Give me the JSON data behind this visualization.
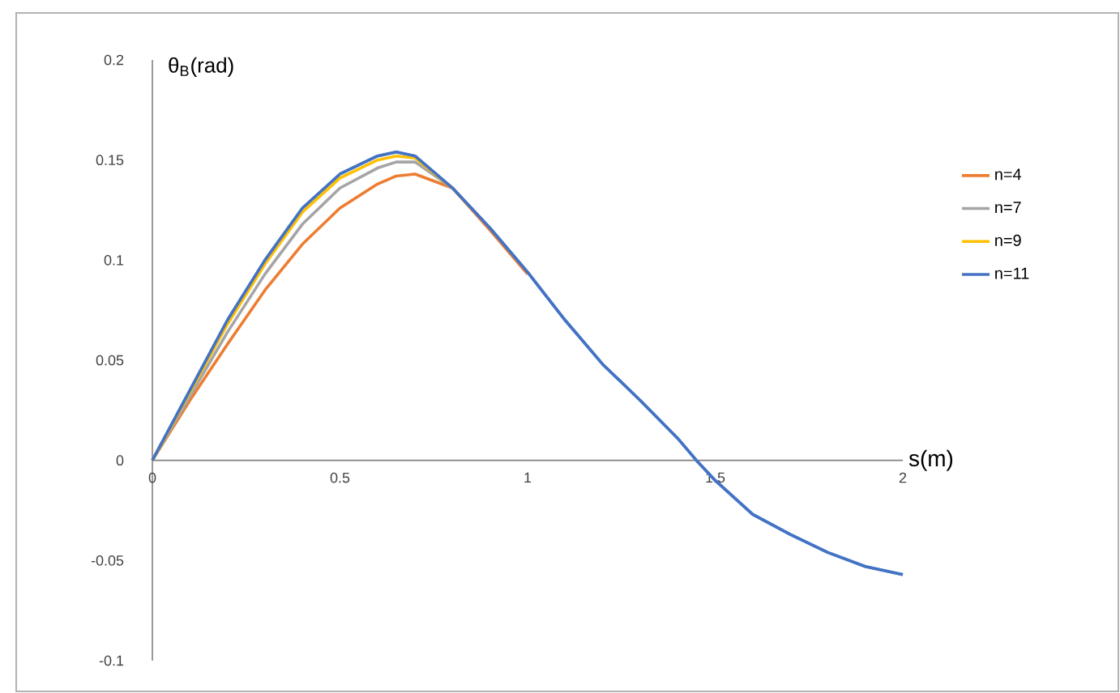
{
  "chart_data": {
    "type": "line",
    "xlabel": "s(m)",
    "ylabel": "θ$_{B}$(rad)",
    "x": [
      0,
      0.1,
      0.2,
      0.3,
      0.4,
      0.5,
      0.6,
      0.65,
      0.7,
      0.8,
      0.9,
      1.0,
      1.1,
      1.2,
      1.3,
      1.4,
      1.45,
      1.5,
      1.6,
      1.7,
      1.8,
      1.9,
      2.0
    ],
    "series": [
      {
        "color": "#5b9bd5",
        "values": [
          0,
          0.035,
          0.07,
          0.1,
          0.126,
          0.143,
          0.152,
          0.154,
          0.152,
          0.136,
          0.116,
          0.094,
          0.07,
          0.048,
          0.03,
          0.011,
          0.0,
          -0.01,
          -0.027,
          -0.037,
          -0.046,
          -0.053,
          -0.057
        ]
      },
      {
        "name": "n=4",
        "color": "#ed7d31",
        "values": [
          0,
          0.03,
          0.058,
          0.085,
          0.108,
          0.126,
          0.138,
          0.142,
          0.143,
          0.136,
          0.115,
          0.093,
          null,
          null,
          null,
          null,
          null,
          null,
          null,
          null,
          null,
          null,
          null
        ]
      },
      {
        "name": "n=7",
        "color": "#a5a5a5",
        "values": [
          0,
          0.032,
          0.064,
          0.093,
          0.118,
          0.136,
          0.146,
          0.149,
          0.149,
          0.136,
          null,
          null,
          null,
          null,
          null,
          null,
          null,
          null,
          null,
          null,
          null,
          null,
          null
        ]
      },
      {
        "name": "n=9",
        "color": "#ffc000",
        "values": [
          0,
          0.034,
          0.068,
          0.098,
          0.124,
          0.141,
          0.15,
          0.152,
          0.151,
          0.136,
          null,
          null,
          null,
          null,
          null,
          null,
          null,
          null,
          null,
          null,
          null,
          null,
          null
        ]
      },
      {
        "name": "n=11",
        "color": "#4472c4",
        "values": [
          0,
          0.035,
          0.07,
          0.1,
          0.126,
          0.143,
          0.152,
          0.154,
          0.152,
          0.136,
          0.116,
          0.094,
          0.07,
          0.048,
          0.03,
          0.011,
          0.0,
          -0.01,
          -0.027,
          -0.037,
          -0.046,
          -0.053,
          -0.057
        ]
      }
    ],
    "xlim": [
      0,
      2
    ],
    "ylim": [
      -0.1,
      0.2
    ],
    "xticks": [
      0,
      0.5,
      1,
      1.5,
      2
    ],
    "yticks": [
      -0.1,
      -0.05,
      0,
      0.05,
      0.1,
      0.15,
      0.2
    ],
    "legend": "right"
  }
}
